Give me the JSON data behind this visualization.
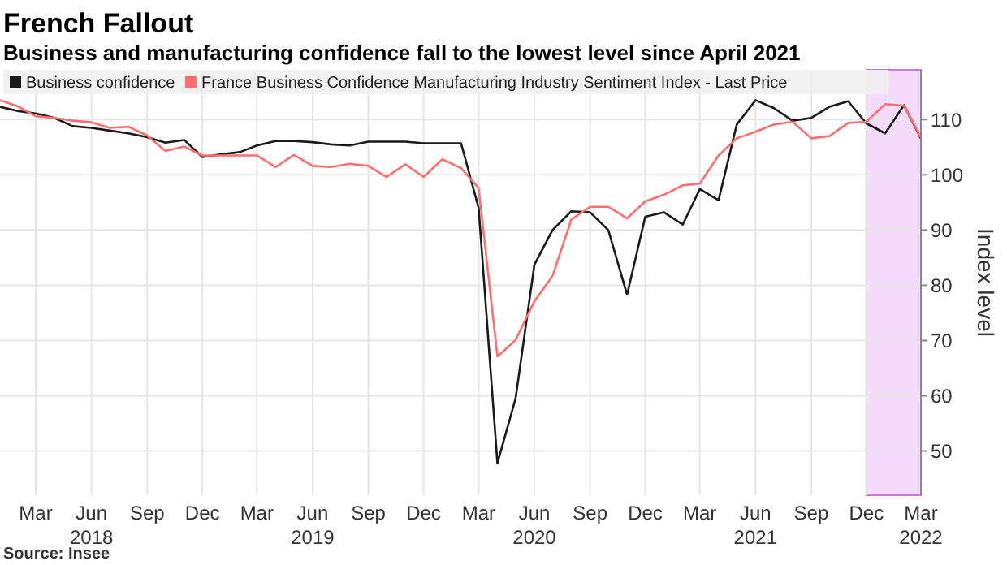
{
  "chart_data": {
    "type": "line",
    "title": "French Fallout",
    "subtitle": "Business and manufacturing confidence fall to the lowest level since April 2021",
    "x": [
      "2018-01",
      "2018-02",
      "2018-03",
      "2018-04",
      "2018-05",
      "2018-06",
      "2018-07",
      "2018-08",
      "2018-09",
      "2018-10",
      "2018-11",
      "2018-12",
      "2019-01",
      "2019-02",
      "2019-03",
      "2019-04",
      "2019-05",
      "2019-06",
      "2019-07",
      "2019-08",
      "2019-09",
      "2019-10",
      "2019-11",
      "2019-12",
      "2020-01",
      "2020-02",
      "2020-03",
      "2020-04",
      "2020-05",
      "2020-06",
      "2020-07",
      "2020-08",
      "2020-09",
      "2020-10",
      "2020-11",
      "2020-12",
      "2021-01",
      "2021-02",
      "2021-03",
      "2021-04",
      "2021-05",
      "2021-06",
      "2021-07",
      "2021-08",
      "2021-09",
      "2021-10",
      "2021-11",
      "2021-12",
      "2022-01",
      "2022-02",
      "2022-03"
    ],
    "series": [
      {
        "name": "Business confidence",
        "color": "#1a1a1a",
        "values": [
          112.3,
          111.5,
          111.1,
          110.3,
          108.8,
          108.5,
          108,
          107.5,
          106.8,
          105.8,
          106.3,
          103.2,
          103.7,
          104.1,
          105.3,
          106.1,
          106.1,
          105.9,
          105.5,
          105.3,
          106,
          106,
          106,
          105.7,
          105.7,
          105.7,
          94,
          47.8,
          59.5,
          83.7,
          90,
          93.4,
          93.2,
          90,
          78.3,
          92.4,
          93.2,
          91,
          97.4,
          95.4,
          109.1,
          113.5,
          112.1,
          109.8,
          110.3,
          112.3,
          113.3,
          109.3,
          107.5,
          112.6,
          106.6
        ]
      },
      {
        "name": "France Business Confidence Manufacturing Industry Sentiment Index - Last Price",
        "color": "#ff6f6f",
        "values": [
          113.5,
          112.3,
          110.6,
          110.3,
          109.8,
          109.5,
          108.5,
          108.7,
          107.1,
          104.3,
          105.1,
          103.5,
          103.5,
          103.5,
          103.5,
          101.4,
          103.6,
          101.6,
          101.4,
          102,
          101.6,
          99.6,
          101.9,
          99.6,
          102.8,
          101.2,
          97.6,
          67.1,
          70.1,
          77.1,
          81.7,
          91.9,
          94.2,
          94.2,
          92.1,
          95.2,
          96.4,
          98.1,
          98.4,
          103.5,
          106.6,
          107.8,
          109.1,
          109.6,
          106.6,
          107,
          109.4,
          109.6,
          112.8,
          112.5,
          106.8
        ]
      }
    ],
    "xlim": [
      "2018-01",
      "2022-03"
    ],
    "xticks": [
      {
        "value": "2018-03",
        "label": "Mar"
      },
      {
        "value": "2018-06",
        "label": "Jun\n2018"
      },
      {
        "value": "2018-09",
        "label": "Sep"
      },
      {
        "value": "2018-12",
        "label": "Dec"
      },
      {
        "value": "2019-03",
        "label": "Mar"
      },
      {
        "value": "2019-06",
        "label": "Jun\n2019"
      },
      {
        "value": "2019-09",
        "label": "Sep"
      },
      {
        "value": "2019-12",
        "label": "Dec"
      },
      {
        "value": "2020-03",
        "label": "Mar"
      },
      {
        "value": "2020-06",
        "label": "Jun\n2020"
      },
      {
        "value": "2020-09",
        "label": "Sep"
      },
      {
        "value": "2020-12",
        "label": "Dec"
      },
      {
        "value": "2021-03",
        "label": "Mar"
      },
      {
        "value": "2021-06",
        "label": "Jun\n2021"
      },
      {
        "value": "2021-09",
        "label": "Sep"
      },
      {
        "value": "2021-12",
        "label": "Dec"
      },
      {
        "value": "2022-03",
        "label": "Mar\n2022"
      }
    ],
    "ylim": [
      42,
      119
    ],
    "yticks": [
      50,
      60,
      70,
      80,
      90,
      100,
      110
    ],
    "ylabel": "Index level",
    "bands": [
      {
        "axis": "x",
        "from": "2021-12",
        "to": "2022-03",
        "color": "#f6dcfc"
      }
    ],
    "grid": true,
    "legend": "top left",
    "line_style": "solid",
    "marker": "none",
    "annotations": [
      "Source: Insee"
    ]
  }
}
